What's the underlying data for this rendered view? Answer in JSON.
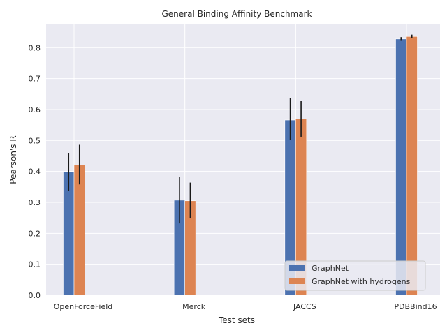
{
  "chart_data": {
    "type": "bar",
    "title": "General Binding Affinity Benchmark",
    "xlabel": "Test sets",
    "ylabel": "Pearson's R",
    "categories": [
      "OpenForceField",
      "Merck",
      "JACCS",
      "PDBBind16"
    ],
    "ylim": [
      0,
      0.875
    ],
    "yticks": [
      0.0,
      0.1,
      0.2,
      0.3,
      0.4,
      0.5,
      0.6,
      0.7,
      0.8
    ],
    "ytick_labels": [
      "0.0",
      "0.1",
      "0.2",
      "0.3",
      "0.4",
      "0.5",
      "0.6",
      "0.7",
      "0.8"
    ],
    "grid": true,
    "legend_position": "bottom-right",
    "series": [
      {
        "name": "GraphNet",
        "color": "#4c72b0",
        "values": [
          0.398,
          0.307,
          0.566,
          0.828
        ],
        "error_low": [
          0.338,
          0.232,
          0.502,
          0.822
        ],
        "error_high": [
          0.46,
          0.382,
          0.636,
          0.834
        ]
      },
      {
        "name": "GraphNet with hydrogens",
        "color": "#dd8452",
        "values": [
          0.421,
          0.305,
          0.569,
          0.836
        ],
        "error_low": [
          0.358,
          0.248,
          0.512,
          0.83
        ],
        "error_high": [
          0.486,
          0.364,
          0.628,
          0.842
        ]
      }
    ]
  }
}
